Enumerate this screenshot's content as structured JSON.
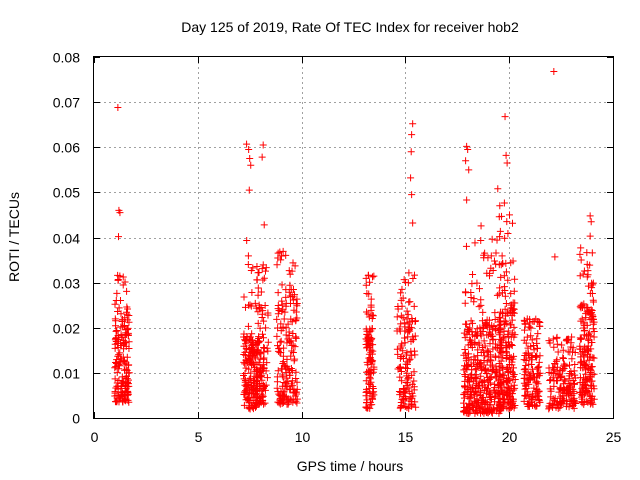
{
  "chart_data": {
    "type": "scatter",
    "title": "Day 125 of 2019, Rate Of TEC Index for receiver hob2",
    "xlabel": "GPS time / hours",
    "ylabel": "ROTI / TECUs",
    "xlim": [
      0,
      25
    ],
    "ylim": [
      0,
      0.08
    ],
    "xticks": [
      "0",
      "5",
      "10",
      "15",
      "20",
      "25"
    ],
    "yticks": [
      "0",
      "0.01",
      "0.02",
      "0.03",
      "0.04",
      "0.05",
      "0.06",
      "0.07",
      "0.08"
    ],
    "grid": true,
    "marker": "plus",
    "color": "#ff0000",
    "outliers": [
      [
        1.15,
        0.0688
      ],
      [
        1.2,
        0.046
      ],
      [
        1.25,
        0.0455
      ],
      [
        1.18,
        0.0402
      ],
      [
        7.35,
        0.0607
      ],
      [
        7.45,
        0.0595
      ],
      [
        7.5,
        0.0575
      ],
      [
        7.55,
        0.056
      ],
      [
        7.48,
        0.0505
      ],
      [
        8.15,
        0.0605
      ],
      [
        8.1,
        0.0578
      ],
      [
        8.2,
        0.0428
      ],
      [
        15.35,
        0.0652
      ],
      [
        15.3,
        0.0628
      ],
      [
        15.28,
        0.059
      ],
      [
        15.25,
        0.0532
      ],
      [
        15.3,
        0.0495
      ],
      [
        15.35,
        0.0432
      ],
      [
        17.95,
        0.0602
      ],
      [
        18.0,
        0.0595
      ],
      [
        17.9,
        0.057
      ],
      [
        18.05,
        0.055
      ],
      [
        17.95,
        0.0483
      ],
      [
        19.8,
        0.0668
      ],
      [
        19.85,
        0.0582
      ],
      [
        19.9,
        0.0565
      ],
      [
        19.45,
        0.0508
      ],
      [
        22.15,
        0.0768
      ],
      [
        22.2,
        0.0357
      ],
      [
        23.9,
        0.0448
      ],
      [
        23.95,
        0.0435
      ],
      [
        23.9,
        0.0403
      ]
    ],
    "clusters": [
      {
        "x": [
          1.0,
          1.7
        ],
        "y": [
          0.0035,
          0.022
        ],
        "peak": 0.032,
        "density": 170
      },
      {
        "x": [
          7.2,
          7.9
        ],
        "y": [
          0.002,
          0.018
        ],
        "peak": 0.04,
        "density": 160
      },
      {
        "x": [
          7.8,
          8.4
        ],
        "y": [
          0.003,
          0.026
        ],
        "peak": 0.034,
        "density": 110
      },
      {
        "x": [
          8.8,
          9.8
        ],
        "y": [
          0.003,
          0.027
        ],
        "peak": 0.037,
        "density": 170
      },
      {
        "x": [
          13.1,
          13.5
        ],
        "y": [
          0.002,
          0.02
        ],
        "peak": 0.032,
        "density": 110
      },
      {
        "x": [
          14.6,
          15.5
        ],
        "y": [
          0.002,
          0.023
        ],
        "peak": 0.033,
        "density": 130
      },
      {
        "x": [
          17.8,
          18.6
        ],
        "y": [
          0.001,
          0.02
        ],
        "peak": 0.04,
        "density": 160
      },
      {
        "x": [
          18.6,
          19.6
        ],
        "y": [
          0.001,
          0.022
        ],
        "peak": 0.043,
        "density": 220
      },
      {
        "x": [
          19.5,
          20.3
        ],
        "y": [
          0.002,
          0.026
        ],
        "peak": 0.048,
        "density": 200
      },
      {
        "x": [
          20.7,
          21.5
        ],
        "y": [
          0.0025,
          0.021
        ],
        "peak": 0.022,
        "density": 130
      },
      {
        "x": [
          21.9,
          23.2
        ],
        "y": [
          0.002,
          0.015
        ],
        "peak": 0.018,
        "density": 160
      },
      {
        "x": [
          23.4,
          24.1
        ],
        "y": [
          0.003,
          0.025
        ],
        "peak": 0.038,
        "density": 180
      }
    ]
  }
}
